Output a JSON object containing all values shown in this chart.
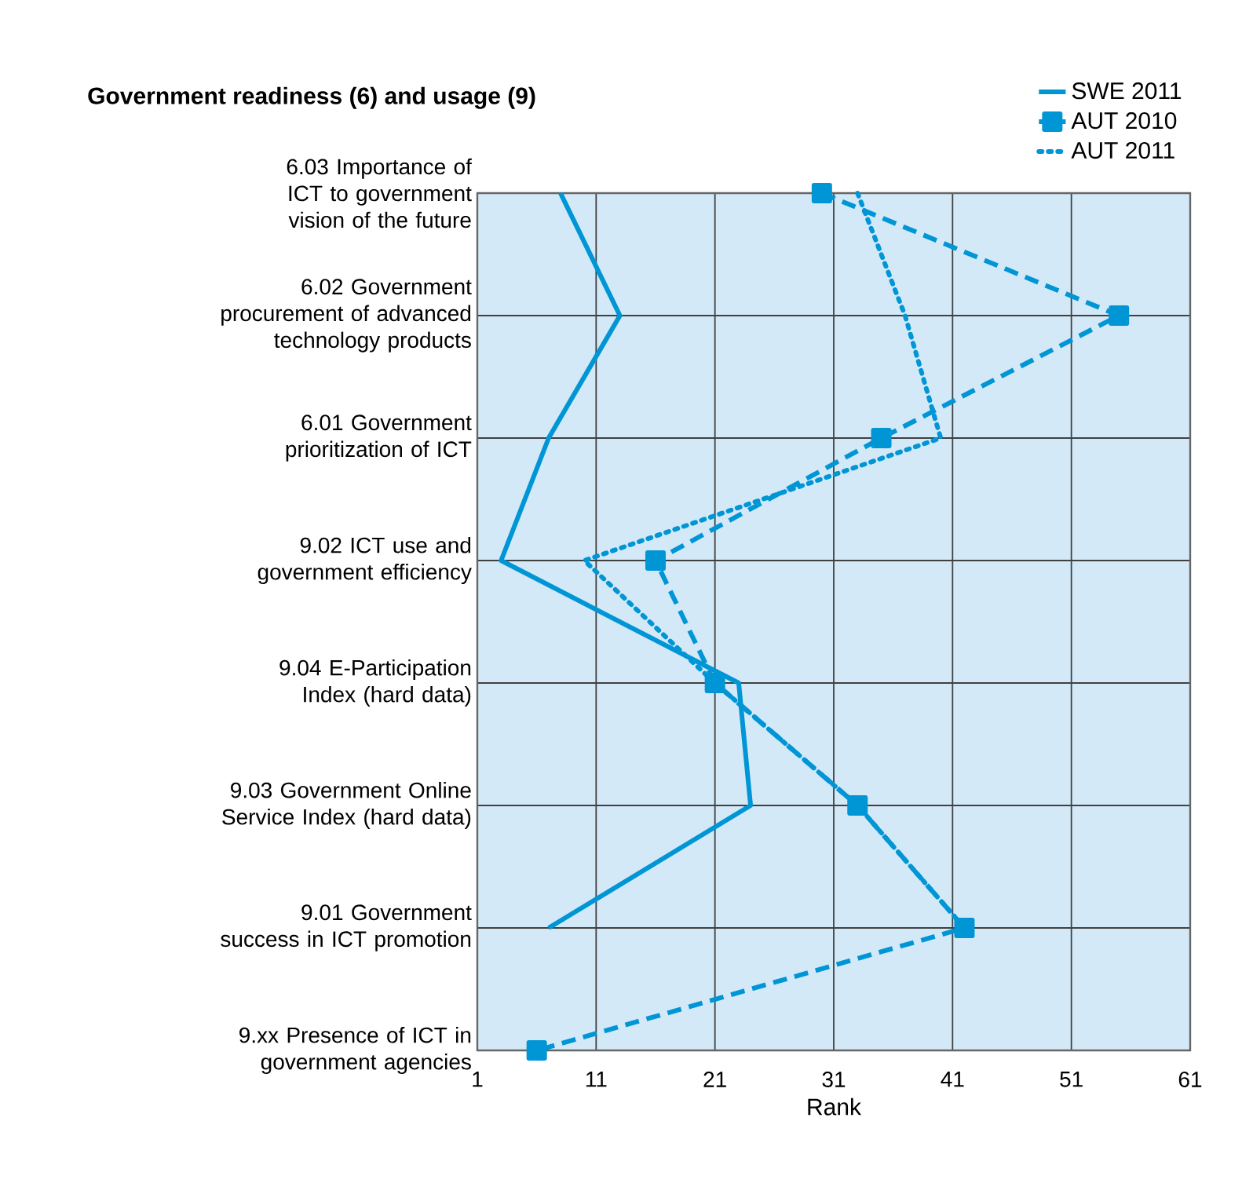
{
  "chart_data": {
    "type": "line",
    "title": "Government readiness (6) and usage (9)",
    "xlabel": "Rank",
    "categories": [
      "6.03 Importance of ICT to government vision of the future",
      "6.02 Government procurement of advanced technology products",
      "6.01 Government prioritization of ICT",
      "9.02 ICT use and government efficiency",
      "9.04 E-Participation Index (hard data)",
      "9.03 Government Online Service Index (hard data)",
      "9.01 Government success in ICT promotion",
      "9.xx Presence of ICT in government agencies"
    ],
    "orientation": "horizontal",
    "series": [
      {
        "name": "SWE 2011",
        "color": "#0096d6",
        "line_style": "solid",
        "marker": "none",
        "values": [
          8,
          13,
          7,
          3,
          23,
          24,
          7,
          null
        ]
      },
      {
        "name": "AUT 2010",
        "color": "#0096d6",
        "line_style": "dashed",
        "marker": "square",
        "values": [
          30,
          55,
          35,
          16,
          21,
          33,
          42,
          6
        ]
      },
      {
        "name": "AUT 2011",
        "color": "#0096d6",
        "line_style": "dotted",
        "marker": "none",
        "values": [
          33,
          37,
          40,
          10,
          21,
          33,
          42,
          null
        ]
      }
    ],
    "xlim": [
      1,
      61
    ],
    "xticks": [
      1,
      11,
      21,
      31,
      41,
      51,
      61
    ],
    "grid": true,
    "legend": "top right"
  }
}
